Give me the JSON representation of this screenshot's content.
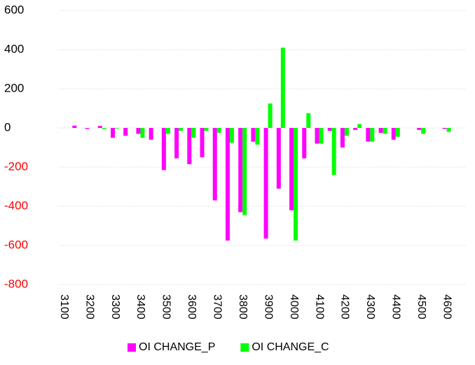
{
  "chart_data": {
    "type": "bar",
    "categories": [
      "3100",
      null,
      "3200",
      null,
      "3300",
      null,
      "3400",
      null,
      "3500",
      null,
      "3600",
      null,
      "3700",
      null,
      "3800",
      null,
      "3900",
      null,
      "4000",
      null,
      "4100",
      null,
      "4200",
      null,
      "4300",
      null,
      "4400",
      null,
      "4500",
      null,
      "4600",
      null
    ],
    "series": [
      {
        "name": "OI CHANGE_P",
        "color": "#ff00ff",
        "values": [
          0,
          12,
          -5,
          10,
          -50,
          -40,
          -30,
          -60,
          -215,
          -155,
          -185,
          -150,
          -370,
          -575,
          -430,
          -70,
          -565,
          -310,
          -420,
          -155,
          -80,
          -15,
          -100,
          -10,
          -70,
          -25,
          -60,
          0,
          -10,
          0,
          -5,
          0
        ]
      },
      {
        "name": "OI CHANGE_C",
        "color": "#00ff00",
        "values": [
          0,
          0,
          0,
          -5,
          -3,
          0,
          -50,
          0,
          -30,
          -15,
          -50,
          -15,
          -25,
          -75,
          -445,
          -85,
          125,
          410,
          -575,
          75,
          -80,
          -240,
          -40,
          20,
          -70,
          -30,
          -45,
          0,
          -30,
          0,
          -20,
          0
        ]
      }
    ],
    "ylim": [
      -800,
      600
    ],
    "yticks": [
      -800,
      -600,
      -400,
      -200,
      0,
      200,
      400,
      600
    ],
    "grid": true,
    "negative_tick_color": "#ff0000",
    "legend": "bottom"
  }
}
